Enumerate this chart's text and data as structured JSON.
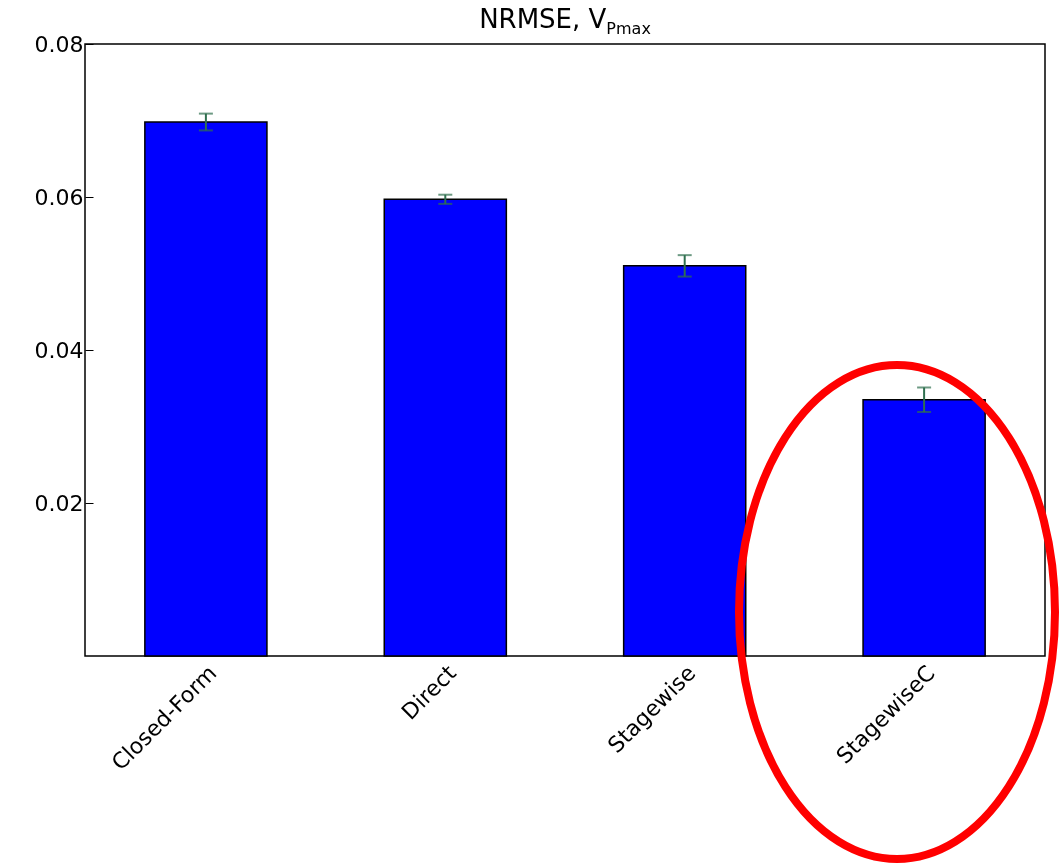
{
  "chart_data": {
    "type": "bar",
    "title": "NRMSE, V$_{Pmax}$",
    "categories": [
      "Closed-Form",
      "Direct",
      "Stagewise",
      "StagewiseC"
    ],
    "values": [
      0.0698,
      0.0597,
      0.051,
      0.0335
    ],
    "errors": [
      0.0011,
      0.0006,
      0.0014,
      0.0016
    ],
    "color": "#0000ff",
    "ylim": [
      0,
      0.08
    ],
    "yticks": [
      0.02,
      0.04,
      0.06,
      0.08
    ],
    "grid": false
  }
}
